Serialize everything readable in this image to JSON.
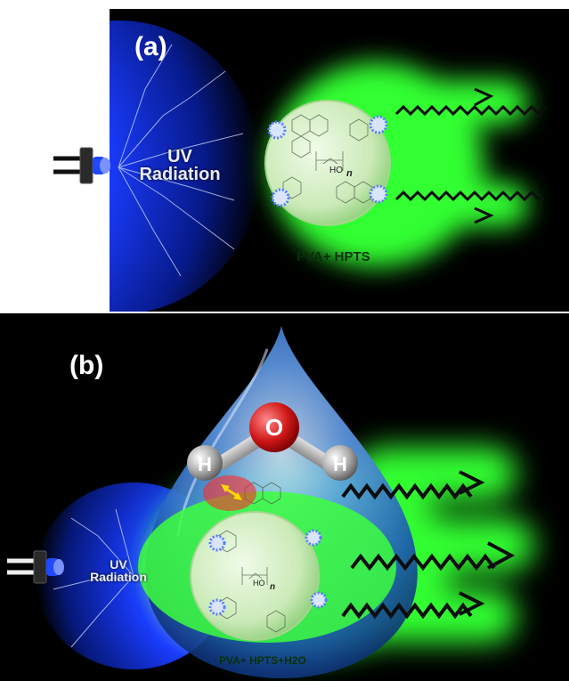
{
  "panel_a": {
    "label": "(a)",
    "uv_line1": "UV",
    "uv_line2": "Radiation",
    "sample_label": "PVA+ HPTS",
    "polymer_sub": "n",
    "polymer_group": "HO"
  },
  "panel_b": {
    "label": "(b)",
    "uv_line1": "UV",
    "uv_line2": "Radiation",
    "sample_label": "PVA+ HPTS+H2O",
    "polymer_sub": "n",
    "polymer_group": "HO",
    "water": {
      "oxygen": "O",
      "hydrogen_left": "H",
      "hydrogen_right": "H"
    }
  },
  "colors": {
    "glow_green": "#33ff33",
    "uv_blue": "#1a3cff",
    "drop_blue": "#2a6fd6",
    "oxygen_red": "#d01818",
    "arrow_yellow": "#ffd800",
    "background": "#000000"
  }
}
